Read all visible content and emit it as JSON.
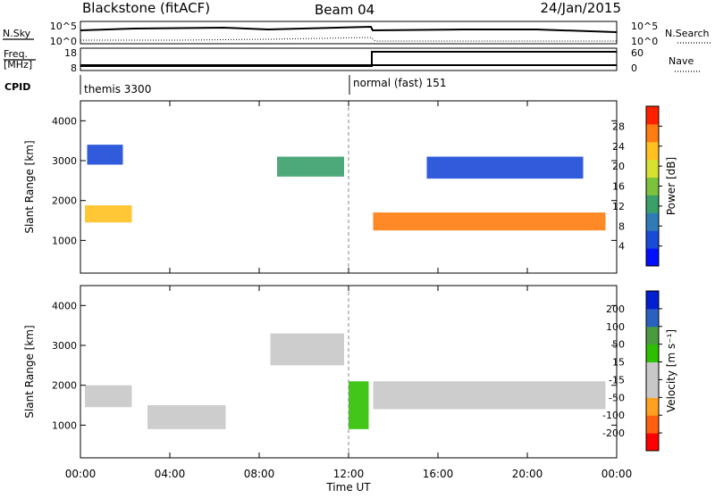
{
  "header": {
    "station": "Blackstone (fitACF)",
    "beam": "Beam 04",
    "date": "24/Jan/2015"
  },
  "panels": {
    "nsky": {
      "label": "N.Sky",
      "left_ticks": [
        "10^5",
        "10^0"
      ],
      "right_ticks": [
        "10^5",
        "10^0"
      ],
      "right_label": "N.Search"
    },
    "freq": {
      "label1": "Freq.",
      "label2": "[MHz]",
      "left_ticks": [
        "18",
        "8"
      ],
      "right_ticks": [
        "60",
        "0"
      ],
      "right_label": "Nave"
    },
    "cpid": {
      "label": "CPID",
      "modes": [
        "themis 3300",
        "normal (fast) 151"
      ]
    }
  },
  "chart_data": [
    {
      "type": "heatmap",
      "title": "",
      "xlabel": "Time UT",
      "ylabel": "Slant Range [km]",
      "x_ticks": [
        "00:00",
        "04:00",
        "08:00",
        "12:00",
        "16:00",
        "20:00",
        "00:00"
      ],
      "x_range_hours": [
        0,
        24
      ],
      "y_ticks": [
        1000,
        2000,
        3000,
        4000
      ],
      "ylim": [
        180,
        4500
      ],
      "colorbar": {
        "label": "Power [dB]",
        "ticks": [
          4,
          8,
          12,
          16,
          20,
          24,
          28
        ],
        "range": [
          0,
          32
        ],
        "colors": [
          "#0010ff",
          "#1a4ad8",
          "#2f7bb8",
          "#3aa06a",
          "#7cc23a",
          "#d8e030",
          "#ffc020",
          "#ff7c10",
          "#ff2000"
        ]
      },
      "echo_bands": [
        {
          "t0": 0.2,
          "t1": 2.3,
          "r0": 1450,
          "r1": 1880,
          "value": 24
        },
        {
          "t0": 13.1,
          "t1": 23.5,
          "r0": 1250,
          "r1": 1700,
          "value": 26
        },
        {
          "t0": 8.8,
          "t1": 11.8,
          "r0": 2600,
          "r1": 3100,
          "value": 14
        },
        {
          "t0": 0.3,
          "t1": 1.9,
          "r0": 2900,
          "r1": 3400,
          "value": 6
        },
        {
          "t0": 15.5,
          "t1": 22.5,
          "r0": 2550,
          "r1": 3100,
          "value": 5
        }
      ]
    },
    {
      "type": "heatmap",
      "title": "",
      "xlabel": "Time UT",
      "ylabel": "Slant Range [km]",
      "x_ticks": [
        "00:00",
        "04:00",
        "08:00",
        "12:00",
        "16:00",
        "20:00",
        "00:00"
      ],
      "x_range_hours": [
        0,
        24
      ],
      "y_ticks": [
        1000,
        2000,
        3000,
        4000
      ],
      "ylim": [
        180,
        4500
      ],
      "colorbar": {
        "label": "Velocity [m s⁻¹]",
        "ticks": [
          200,
          100,
          50,
          15,
          -15,
          -50,
          -100,
          -200
        ],
        "range": [
          -250,
          250
        ],
        "colors": [
          "#ff0000",
          "#ff6010",
          "#ffa020",
          "#c8c8c8",
          "#c8c8c8",
          "#2cc000",
          "#4a9a40",
          "#2b60c0",
          "#0020d0"
        ]
      },
      "echo_bands": [
        {
          "t0": 0.2,
          "t1": 2.3,
          "r0": 1450,
          "r1": 2000,
          "value": 0
        },
        {
          "t0": 13.1,
          "t1": 23.5,
          "r0": 1400,
          "r1": 2100,
          "value": 0
        },
        {
          "t0": 8.5,
          "t1": 11.8,
          "r0": 2500,
          "r1": 3300,
          "value": 0
        },
        {
          "t0": 12.0,
          "t1": 12.9,
          "r0": 900,
          "r1": 2100,
          "value": 60
        },
        {
          "t0": 3.0,
          "t1": 6.5,
          "r0": 900,
          "r1": 1500,
          "value": -80
        }
      ]
    }
  ]
}
